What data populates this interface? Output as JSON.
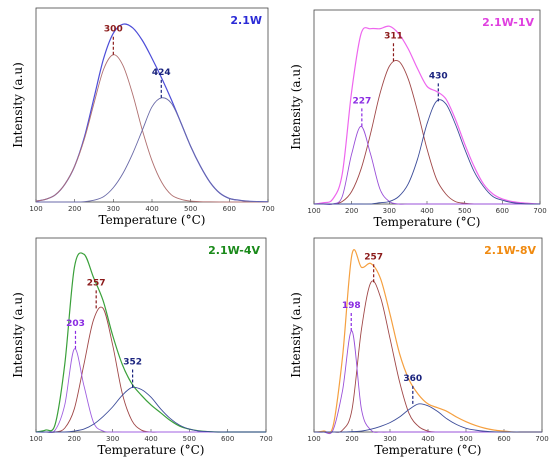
{
  "chart_data": [
    {
      "type": "line",
      "title": "2.1W",
      "title_color": "#2b2bd6",
      "xlabel": "Temperature (°C)",
      "ylabel": "Intensity (a.u)",
      "xlim": [
        100,
        700
      ],
      "xticks": [
        100,
        200,
        300,
        400,
        500,
        600,
        700
      ],
      "series": [
        {
          "color": "#4d4dd8",
          "x": [
            100,
            125,
            150,
            175,
            200,
            225,
            250,
            275,
            300,
            325,
            350,
            375,
            400,
            425,
            450,
            475,
            500,
            525,
            550,
            575,
            600,
            625,
            650,
            675,
            700
          ],
          "values": [
            0.5,
            1.5,
            4,
            10,
            20,
            36,
            58,
            80,
            94,
            99,
            97,
            90,
            80,
            69,
            57,
            44,
            31,
            20,
            11,
            5,
            2,
            1,
            0.4,
            0.2,
            0.1
          ]
        },
        {
          "color": "#b07070",
          "x": [
            100,
            125,
            150,
            175,
            200,
            225,
            250,
            275,
            300,
            325,
            350,
            375,
            400,
            425,
            450,
            475,
            500,
            525,
            550,
            575,
            600,
            625,
            650,
            675,
            700
          ],
          "values": [
            0.5,
            1.5,
            4,
            10,
            20,
            35,
            55,
            74,
            82,
            76,
            60,
            40,
            23,
            11,
            4,
            1.5,
            0.5,
            0.2,
            0.1,
            0,
            0,
            0,
            0,
            0,
            0
          ]
        },
        {
          "color": "#6a6aa8",
          "x": [
            100,
            125,
            150,
            175,
            200,
            225,
            250,
            275,
            300,
            325,
            350,
            375,
            400,
            425,
            450,
            475,
            500,
            525,
            550,
            575,
            600,
            625,
            650,
            675,
            700
          ],
          "values": [
            0,
            0,
            0,
            0,
            0,
            0.2,
            1,
            3,
            8,
            16,
            27,
            40,
            53,
            58,
            55,
            44,
            31,
            20,
            11,
            5,
            2,
            1,
            0.4,
            0.2,
            0.1
          ]
        }
      ],
      "peaks": [
        {
          "x": 300,
          "y": 82,
          "label": "300",
          "color": "#8b1a1a"
        },
        {
          "x": 424,
          "y": 58,
          "label": "424",
          "color": "#1a237e"
        }
      ]
    },
    {
      "type": "line",
      "title": "2.1W-1V",
      "title_color": "#e040e0",
      "xlabel": "Temperature (°C)",
      "ylabel": "Intensity (a.u)",
      "xlim": [
        100,
        700
      ],
      "xticks": [
        100,
        200,
        300,
        400,
        500,
        600,
        700
      ],
      "series": [
        {
          "color": "#ee66ee",
          "x": [
            100,
            125,
            150,
            175,
            200,
            225,
            250,
            275,
            300,
            325,
            350,
            375,
            400,
            425,
            450,
            475,
            500,
            525,
            550,
            575,
            600,
            625,
            650,
            675,
            700
          ],
          "values": [
            0,
            0.5,
            2,
            12,
            45,
            68,
            70,
            70,
            71,
            68,
            62,
            54,
            47,
            45,
            42,
            34,
            24,
            15,
            8,
            4,
            2,
            1,
            0.5,
            0.2,
            0
          ]
        },
        {
          "color": "#a04848",
          "x": [
            100,
            125,
            150,
            175,
            200,
            225,
            250,
            275,
            300,
            325,
            350,
            375,
            400,
            425,
            450,
            475,
            500,
            525,
            550,
            575,
            600,
            625,
            650,
            675,
            700
          ],
          "values": [
            0,
            0,
            0,
            1,
            5,
            14,
            28,
            44,
            55,
            57,
            50,
            37,
            22,
            10,
            4,
            1,
            0.3,
            0,
            0,
            0,
            0,
            0,
            0,
            0,
            0
          ]
        },
        {
          "color": "#9a50d8",
          "x": [
            100,
            125,
            150,
            175,
            200,
            225,
            250,
            275,
            300,
            325,
            350,
            375,
            400,
            425,
            450,
            475,
            500,
            525,
            550,
            575,
            600,
            625,
            650,
            675,
            700
          ],
          "values": [
            0,
            0,
            0,
            3,
            20,
            31,
            20,
            6,
            1,
            0,
            0,
            0,
            0,
            0,
            0,
            0,
            0,
            0,
            0,
            0,
            0,
            0,
            0,
            0,
            0
          ]
        },
        {
          "color": "#3d4d9a",
          "x": [
            100,
            125,
            150,
            175,
            200,
            225,
            250,
            275,
            300,
            325,
            350,
            375,
            400,
            425,
            450,
            475,
            500,
            525,
            550,
            575,
            600,
            625,
            650,
            675,
            700
          ],
          "values": [
            0,
            0,
            0,
            0,
            0,
            0,
            0,
            0.5,
            1,
            3,
            8,
            18,
            32,
            41,
            40,
            32,
            22,
            13,
            7,
            3,
            1.5,
            0.6,
            0.2,
            0,
            0
          ]
        }
      ],
      "peaks": [
        {
          "x": 227,
          "y": 31,
          "label": "227",
          "color": "#8a2be2"
        },
        {
          "x": 311,
          "y": 57,
          "label": "311",
          "color": "#8b1a1a"
        },
        {
          "x": 430,
          "y": 41,
          "label": "430",
          "color": "#1a237e"
        }
      ]
    },
    {
      "type": "line",
      "title": "2.1W-4V",
      "title_color": "#1a8a1a",
      "xlabel": "Temperature (°C)",
      "ylabel": "Intensity (a.u)",
      "xlim": [
        100,
        700
      ],
      "xticks": [
        100,
        200,
        300,
        400,
        500,
        600,
        700
      ],
      "series": [
        {
          "color": "#3aa03a",
          "x": [
            100,
            125,
            150,
            175,
            200,
            225,
            250,
            275,
            300,
            325,
            350,
            375,
            400,
            425,
            450,
            475,
            500,
            525,
            550,
            575,
            600,
            625,
            650,
            675,
            700
          ],
          "values": [
            0,
            1,
            4,
            35,
            85,
            92,
            80,
            68,
            50,
            35,
            25,
            19,
            14,
            10,
            6,
            3,
            1.5,
            0.6,
            0.2,
            0,
            0,
            0,
            0,
            0,
            0
          ]
        },
        {
          "color": "#a04848",
          "x": [
            100,
            125,
            150,
            175,
            200,
            225,
            250,
            275,
            300,
            325,
            350,
            375,
            400,
            425,
            450,
            475,
            500,
            525,
            550,
            575,
            600,
            625,
            650,
            675,
            700
          ],
          "values": [
            0,
            0,
            0,
            2,
            12,
            35,
            58,
            64,
            45,
            20,
            6,
            1,
            0,
            0,
            0,
            0,
            0,
            0,
            0,
            0,
            0,
            0,
            0,
            0,
            0
          ]
        },
        {
          "color": "#a060e0",
          "x": [
            100,
            125,
            150,
            175,
            200,
            225,
            250,
            275,
            300,
            325,
            350,
            375,
            400,
            425,
            450,
            475,
            500,
            525,
            550,
            575,
            600,
            625,
            650,
            675,
            700
          ],
          "values": [
            0,
            0,
            1,
            14,
            43,
            24,
            5,
            0.5,
            0,
            0,
            0,
            0,
            0,
            0,
            0,
            0,
            0,
            0,
            0,
            0,
            0,
            0,
            0,
            0,
            0
          ]
        },
        {
          "color": "#3d4d9a",
          "x": [
            100,
            125,
            150,
            175,
            200,
            225,
            250,
            275,
            300,
            325,
            350,
            375,
            400,
            425,
            450,
            475,
            500,
            525,
            550,
            575,
            600,
            625,
            650,
            675,
            700
          ],
          "values": [
            0,
            0,
            0,
            0,
            0.5,
            1.5,
            4,
            8,
            13,
            19,
            23,
            22,
            18,
            12,
            7,
            3.5,
            1.5,
            0.5,
            0.2,
            0,
            0,
            0,
            0,
            0,
            0
          ]
        }
      ],
      "peaks": [
        {
          "x": 203,
          "y": 43,
          "label": "203",
          "color": "#8a2be2"
        },
        {
          "x": 257,
          "y": 64,
          "label": "257",
          "color": "#8b1a1a"
        },
        {
          "x": 352,
          "y": 23,
          "label": "352",
          "color": "#1a237e"
        }
      ]
    },
    {
      "type": "line",
      "title": "2.1W-8V",
      "title_color": "#f08a10",
      "xlabel": "Temperature (°C)",
      "ylabel": "Intensity (a.u)",
      "xlim": [
        100,
        700
      ],
      "xticks": [
        100,
        200,
        300,
        400,
        500,
        600,
        700
      ],
      "series": [
        {
          "color": "#f5a040",
          "x": [
            100,
            125,
            150,
            175,
            200,
            225,
            250,
            275,
            300,
            325,
            350,
            375,
            400,
            425,
            450,
            475,
            500,
            525,
            550,
            575,
            600,
            625,
            650,
            675,
            700
          ],
          "values": [
            0,
            0.5,
            3,
            40,
            95,
            88,
            90,
            82,
            63,
            42,
            28,
            20,
            15,
            13,
            11,
            8,
            5.5,
            3.5,
            2,
            1,
            0.5,
            0,
            0,
            0,
            0
          ]
        },
        {
          "color": "#a04848",
          "x": [
            100,
            125,
            150,
            175,
            200,
            225,
            250,
            275,
            300,
            325,
            350,
            375,
            400,
            425,
            450,
            475,
            500,
            525,
            550,
            575,
            600,
            625,
            650,
            675,
            700
          ],
          "values": [
            0,
            0,
            0,
            1,
            12,
            55,
            80,
            72,
            50,
            27,
            10,
            3,
            0.5,
            0,
            0,
            0,
            0,
            0,
            0,
            0,
            0,
            0,
            0,
            0,
            0
          ]
        },
        {
          "color": "#9a50d8",
          "x": [
            100,
            125,
            150,
            175,
            200,
            225,
            250,
            275,
            300,
            325,
            350,
            375,
            400,
            425,
            450,
            475,
            500,
            525,
            550,
            575,
            600,
            625,
            650,
            675,
            700
          ],
          "values": [
            0,
            0,
            1,
            22,
            54,
            12,
            1,
            0,
            0,
            0,
            0,
            0,
            0,
            0,
            0,
            0,
            0,
            0,
            0,
            0,
            0,
            0,
            0,
            0,
            0
          ]
        },
        {
          "color": "#3d4d9a",
          "x": [
            100,
            125,
            150,
            175,
            200,
            225,
            250,
            275,
            300,
            325,
            350,
            375,
            400,
            425,
            450,
            475,
            500,
            525,
            550,
            575,
            600,
            625,
            650,
            675,
            700
          ],
          "values": [
            0,
            0,
            0,
            0,
            0.2,
            0.5,
            1.5,
            3,
            5,
            8,
            12,
            15,
            14,
            11,
            7,
            4,
            2,
            1,
            0.4,
            0.1,
            0,
            0,
            0,
            0,
            0
          ]
        }
      ],
      "peaks": [
        {
          "x": 198,
          "y": 54,
          "label": "198",
          "color": "#8a2be2"
        },
        {
          "x": 257,
          "y": 80,
          "label": "257",
          "color": "#8b1a1a"
        },
        {
          "x": 360,
          "y": 15,
          "label": "360",
          "color": "#1a237e"
        }
      ]
    }
  ]
}
